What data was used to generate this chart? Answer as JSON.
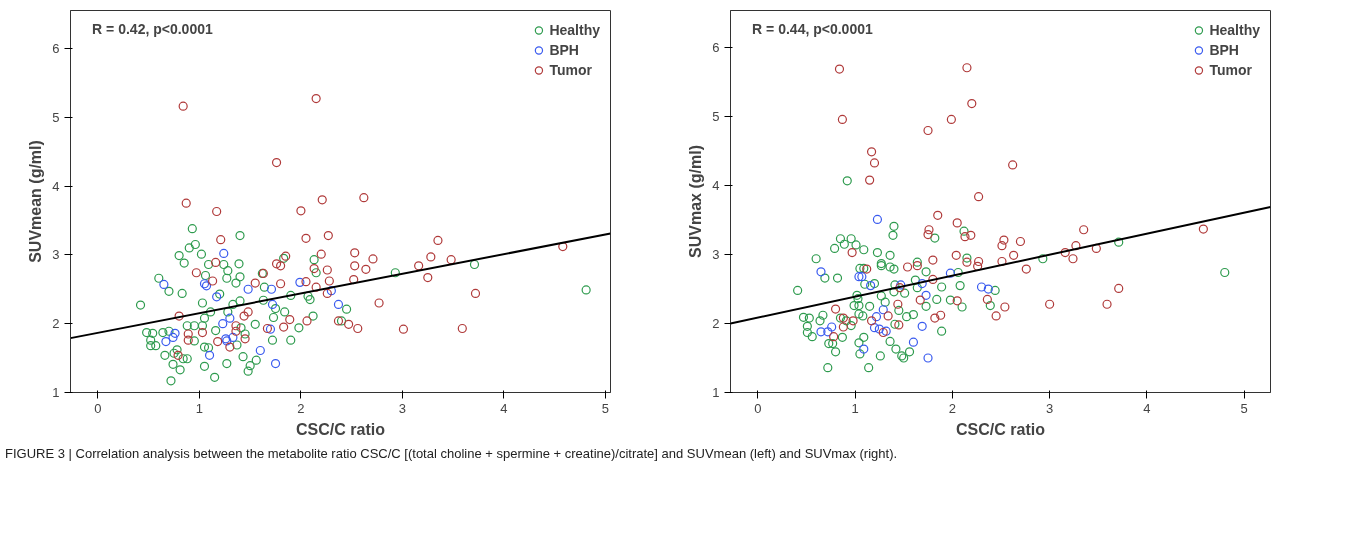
{
  "chart_data": [
    {
      "type": "scatter",
      "xlabel": "CSC/C ratio",
      "ylabel": "SUVmean (g/ml)",
      "xlim": [
        -0.27,
        5.05
      ],
      "ylim": [
        1,
        6.55
      ],
      "xticks": [
        0,
        1,
        2,
        3,
        4,
        5
      ],
      "yticks": [
        1,
        2,
        3,
        4,
        5,
        6
      ],
      "grid": false,
      "legend": "top right",
      "marker": "circle",
      "annotations": [
        "R = 0.42, p<0.0001"
      ],
      "series": [
        {
          "name": "Healthy",
          "color": "#2e9b4e",
          "x": [
            0.93,
            1.4,
            0.96,
            0.9,
            0.8,
            1.02,
            0.85,
            1.09,
            1.24,
            1.39,
            1.83,
            2.13,
            2.93,
            3.71,
            4.81,
            2.15,
            0.6,
            1.06,
            1.28,
            1.4,
            1.27,
            1.36,
            1.62,
            0.7,
            0.83,
            1.2,
            1.64,
            0.42,
            1.03,
            1.4,
            1.33,
            1.63,
            1.9,
            2.07,
            2.09,
            1.75,
            1.84,
            2.45,
            1.11,
            1.28,
            1.05,
            2.12,
            1.73,
            2.4,
            1.55,
            1.41,
            1.98,
            0.88,
            0.95,
            1.03,
            0.48,
            0.54,
            0.64,
            0.7,
            0.52,
            0.52,
            0.57,
            0.95,
            1.16,
            1.45,
            1.72,
            1.9,
            1.05,
            1.09,
            1.37,
            0.66,
            0.78,
            0.75,
            1.43,
            1.56,
            0.84,
            0.88,
            0.74,
            1.05,
            1.27,
            1.5,
            0.81,
            1.48,
            1.15,
            0.72
          ],
          "values": [
            3.38,
            3.28,
            3.15,
            3.1,
            2.99,
            3.01,
            2.88,
            2.86,
            2.86,
            2.87,
            2.95,
            2.93,
            2.74,
            2.86,
            2.49,
            2.74,
            2.66,
            2.7,
            2.77,
            2.68,
            2.66,
            2.59,
            2.73,
            2.47,
            2.44,
            2.43,
            2.53,
            2.27,
            2.3,
            2.33,
            2.28,
            2.34,
            2.41,
            2.4,
            2.35,
            2.22,
            2.17,
            2.21,
            2.17,
            2.17,
            2.08,
            2.11,
            2.09,
            2.04,
            1.99,
            1.94,
            1.94,
            1.97,
            1.97,
            1.97,
            1.87,
            1.86,
            1.87,
            1.89,
            1.76,
            1.68,
            1.68,
            1.75,
            1.9,
            1.85,
            1.76,
            1.76,
            1.66,
            1.65,
            1.69,
            1.54,
            1.62,
            1.57,
            1.52,
            1.47,
            1.49,
            1.49,
            1.41,
            1.38,
            1.42,
            1.39,
            1.33,
            1.31,
            1.22,
            1.17
          ]
        },
        {
          "name": "BPH",
          "color": "#3a5bef",
          "x": [
            1.24,
            0.65,
            1.05,
            1.07,
            1.48,
            1.71,
            1.99,
            2.3,
            1.17,
            1.72,
            2.37,
            1.3,
            1.23,
            1.7,
            0.76,
            0.74,
            0.67,
            1.26,
            1.33,
            1.27,
            1.1,
            1.6,
            1.75
          ],
          "values": [
            3.02,
            2.57,
            2.58,
            2.55,
            2.5,
            2.5,
            2.6,
            2.48,
            2.39,
            2.28,
            2.28,
            2.08,
            2.0,
            1.92,
            1.86,
            1.8,
            1.74,
            1.78,
            1.8,
            1.75,
            1.54,
            1.61,
            1.42
          ]
        },
        {
          "name": "Tumor",
          "color": "#b03a3a",
          "x": [
            0.84,
            2.15,
            1.76,
            0.87,
            1.17,
            2.0,
            2.21,
            2.62,
            1.21,
            2.05,
            2.27,
            3.35,
            1.85,
            2.2,
            2.53,
            2.71,
            3.28,
            3.48,
            4.58,
            1.16,
            1.76,
            1.8,
            2.13,
            2.26,
            2.53,
            2.64,
            3.16,
            0.97,
            1.63,
            3.25,
            1.13,
            1.55,
            1.8,
            2.05,
            2.28,
            2.52,
            2.15,
            3.72,
            2.26,
            2.77,
            0.8,
            1.48,
            1.44,
            1.89,
            2.06,
            2.37,
            2.47,
            2.56,
            3.01,
            3.59,
            1.36,
            1.83,
            1.67,
            1.03,
            0.89,
            0.89,
            1.36,
            1.18,
            1.45,
            1.3,
            0.79
          ],
          "values": [
            5.16,
            5.27,
            4.34,
            3.75,
            3.63,
            3.64,
            3.8,
            3.83,
            3.22,
            3.24,
            3.28,
            3.21,
            2.98,
            3.01,
            3.03,
            2.94,
            2.97,
            2.93,
            3.12,
            2.89,
            2.87,
            2.84,
            2.8,
            2.78,
            2.84,
            2.79,
            2.84,
            2.74,
            2.73,
            2.67,
            2.62,
            2.59,
            2.58,
            2.61,
            2.62,
            2.64,
            2.53,
            2.44,
            2.44,
            2.3,
            2.11,
            2.17,
            2.11,
            2.06,
            2.04,
            2.04,
            1.99,
            1.93,
            1.92,
            1.93,
            1.97,
            1.95,
            1.93,
            1.87,
            1.85,
            1.76,
            1.89,
            1.74,
            1.78,
            1.66,
            1.54
          ]
        },
        {
          "type": "line",
          "color": "#000000",
          "marker": "none",
          "x": [
            -0.27,
            5.05
          ],
          "values": [
            1.79,
            3.31
          ]
        }
      ]
    },
    {
      "type": "scatter",
      "xlabel": "CSC/C ratio",
      "ylabel": "SUVmax (g/ml)",
      "xlim": [
        -0.28,
        5.27
      ],
      "ylim": [
        1,
        6.54
      ],
      "xticks": [
        0,
        1,
        2,
        3,
        4,
        5
      ],
      "yticks": [
        1,
        2,
        3,
        4,
        5,
        6
      ],
      "grid": false,
      "legend": "top right",
      "marker": "circle",
      "annotations": [
        "R = 0.44, p<0.0001",
        "FIGURE 3 | Correlation analysis between the metabolite ratio CSC/C [(total choline + spermine + creatine)/citrate] and SUVmean (left) and SUVmax (right)."
      ],
      "series": [
        {
          "name": "Healthy",
          "color": "#2e9b4e",
          "x": [
            0.92,
            1.4,
            1.39,
            0.85,
            0.96,
            0.89,
            1.01,
            1.09,
            0.79,
            2.12,
            1.82,
            3.71,
            2.93,
            4.8,
            0.6,
            1.23,
            1.36,
            2.15,
            1.27,
            1.27,
            1.36,
            1.4,
            1.05,
            1.09,
            1.64,
            1.73,
            2.06,
            0.69,
            0.82,
            1.2,
            1.1,
            1.41,
            1.62,
            1.64,
            1.89,
            2.08,
            2.44,
            0.41,
            1.02,
            1.03,
            1.27,
            1.51,
            1.4,
            1.84,
            1.98,
            1.31,
            0.99,
            1.04,
            1.15,
            1.45,
            1.73,
            2.1,
            2.39,
            0.67,
            0.47,
            0.53,
            1.04,
            1.08,
            1.53,
            1.6,
            0.85,
            0.91,
            0.96,
            0.64,
            0.51,
            0.51,
            0.56,
            1.89,
            1.41,
            0.87,
            1.09,
            0.73,
            0.77,
            1.04,
            1.36,
            0.8,
            1.05,
            1.42,
            1.56,
            1.26,
            1.48,
            1.5,
            0.72,
            1.14
          ],
          "values": [
            4.07,
            3.41,
            3.28,
            3.23,
            3.23,
            3.15,
            3.14,
            3.07,
            3.09,
            3.34,
            3.24,
            3.18,
            2.94,
            2.74,
            2.94,
            3.03,
            2.99,
            2.95,
            2.87,
            2.84,
            2.82,
            2.79,
            2.8,
            2.8,
            2.89,
            2.75,
            2.74,
            2.66,
            2.66,
            2.58,
            2.57,
            2.56,
            2.63,
            2.52,
            2.53,
            2.55,
            2.48,
            2.48,
            2.41,
            2.36,
            2.4,
            2.44,
            2.46,
            2.35,
            2.34,
            2.31,
            2.26,
            2.26,
            2.25,
            2.19,
            2.25,
            2.24,
            2.26,
            2.12,
            2.09,
            2.08,
            2.14,
            2.11,
            2.1,
            2.13,
            2.08,
            2.04,
            1.97,
            2.04,
            1.96,
            1.87,
            1.81,
            1.89,
            1.99,
            1.8,
            1.8,
            1.71,
            1.71,
            1.72,
            1.74,
            1.59,
            1.56,
            1.63,
            1.59,
            1.53,
            1.53,
            1.5,
            1.36,
            1.36
          ]
        },
        {
          "name": "BPH",
          "color": "#3a5bef",
          "x": [
            1.23,
            0.65,
            1.04,
            1.07,
            1.98,
            1.16,
            1.47,
            1.69,
            2.3,
            2.37,
            1.73,
            1.29,
            1.22,
            0.76,
            1.69,
            0.65,
            0.72,
            1.2,
            1.25,
            1.32,
            1.09,
            1.6,
            1.75
          ],
          "values": [
            3.51,
            2.75,
            2.68,
            2.68,
            2.73,
            2.55,
            2.56,
            2.58,
            2.53,
            2.5,
            2.41,
            2.2,
            2.1,
            1.95,
            1.96,
            1.88,
            1.88,
            1.94,
            1.92,
            1.89,
            1.63,
            1.73,
            1.5
          ]
        },
        {
          "name": "Tumor",
          "color": "#b03a3a",
          "x": [
            0.84,
            2.15,
            2.2,
            0.87,
            1.99,
            1.75,
            1.17,
            1.2,
            1.15,
            2.62,
            2.27,
            1.85,
            2.05,
            1.76,
            1.75,
            2.13,
            2.19,
            2.53,
            2.51,
            2.7,
            3.35,
            4.58,
            3.27,
            3.48,
            3.16,
            0.97,
            2.04,
            2.63,
            1.8,
            2.27,
            2.15,
            2.51,
            3.24,
            2.26,
            1.54,
            1.64,
            1.12,
            2.76,
            1.8,
            3.71,
            1.46,
            1.67,
            2.05,
            2.36,
            3.0,
            3.59,
            2.54,
            1.44,
            0.8,
            2.45,
            1.34,
            1.82,
            1.88,
            0.88,
            0.98,
            1.17,
            1.45,
            0.88,
            1.29,
            0.78
          ],
          "values": [
            5.69,
            5.71,
            5.19,
            4.96,
            4.96,
            4.8,
            4.49,
            4.33,
            4.08,
            4.3,
            3.84,
            3.57,
            3.46,
            3.36,
            3.29,
            3.26,
            3.28,
            3.21,
            3.13,
            3.19,
            3.36,
            3.37,
            3.13,
            3.09,
            3.03,
            3.03,
            2.99,
            2.99,
            2.92,
            2.9,
            2.89,
            2.9,
            2.94,
            2.83,
            2.82,
            2.84,
            2.79,
            2.79,
            2.64,
            2.51,
            2.52,
            2.34,
            2.33,
            2.35,
            2.28,
            2.28,
            2.24,
            2.28,
            2.21,
            2.11,
            2.11,
            2.08,
            2.12,
            2.08,
            2.04,
            2.04,
            1.98,
            1.95,
            1.87,
            1.81
          ]
        },
        {
          "type": "line",
          "color": "#000000",
          "marker": "none",
          "x": [
            -0.28,
            5.27
          ],
          "values": [
            2.0,
            3.69
          ]
        }
      ]
    }
  ]
}
